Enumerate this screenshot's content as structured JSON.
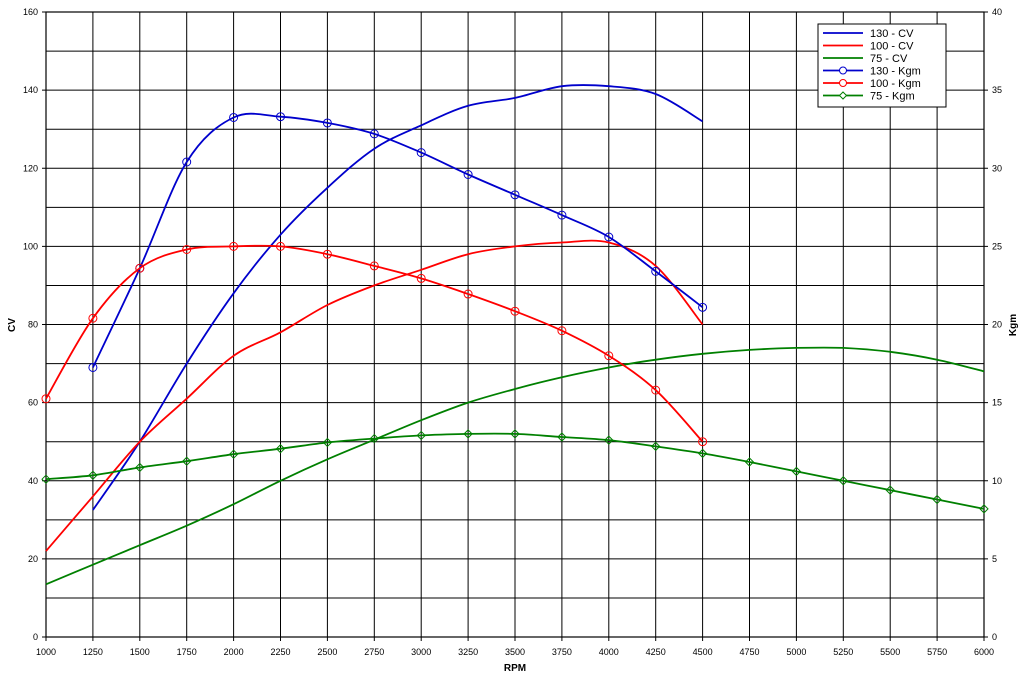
{
  "chart_data": {
    "type": "line",
    "xlabel": "RPM",
    "ylabel_left": "CV",
    "ylabel_right": "Kgm",
    "xlim": [
      1000,
      6000
    ],
    "ylim_left": [
      0,
      160
    ],
    "ylim_right": [
      0,
      40
    ],
    "x_ticks": [
      1000,
      1250,
      1500,
      1750,
      2000,
      2250,
      2500,
      2750,
      3000,
      3250,
      3500,
      3750,
      4000,
      4250,
      4500,
      4750,
      5000,
      5250,
      5500,
      5750,
      6000
    ],
    "y_left_ticks": [
      0,
      20,
      40,
      60,
      80,
      100,
      120,
      140,
      160
    ],
    "y_right_ticks": [
      0,
      5,
      10,
      15,
      20,
      25,
      30,
      35,
      40
    ],
    "grid": true,
    "legend_position": "top-right",
    "series": [
      {
        "name": "130 - CV",
        "axis": "left",
        "color": "#0000cc",
        "marker": "none",
        "x": [
          1250,
          1500,
          1750,
          2000,
          2250,
          2500,
          2750,
          3000,
          3250,
          3500,
          3750,
          4000,
          4250,
          4500
        ],
        "values": [
          32.5,
          50,
          70,
          88,
          103,
          115,
          125,
          131,
          136,
          138,
          141,
          141,
          139,
          132
        ]
      },
      {
        "name": "100 - CV",
        "axis": "left",
        "color": "#ff0000",
        "marker": "none",
        "x": [
          1000,
          1250,
          1500,
          1750,
          2000,
          2250,
          2500,
          2750,
          3000,
          3250,
          3500,
          3750,
          4000,
          4250,
          4500
        ],
        "values": [
          22,
          36,
          50,
          61,
          72,
          78,
          85,
          90,
          94,
          98,
          100,
          101,
          101,
          95,
          80
        ]
      },
      {
        "name": "75 - CV",
        "axis": "left",
        "color": "#008000",
        "marker": "none",
        "x": [
          1000,
          1250,
          1500,
          1750,
          2000,
          2250,
          2500,
          2750,
          3000,
          3250,
          3500,
          3750,
          4000,
          4250,
          4500,
          4750,
          5000,
          5250,
          5500,
          5750,
          6000
        ],
        "values": [
          13.5,
          18.5,
          23.5,
          28.5,
          34,
          40,
          45.5,
          50.5,
          55.5,
          60,
          63.5,
          66.5,
          69,
          71,
          72.5,
          73.5,
          74,
          74,
          73,
          71,
          68
        ]
      },
      {
        "name": "130 - Kgm",
        "axis": "right",
        "color": "#0000cc",
        "marker": "circle",
        "x": [
          1250,
          1500,
          1750,
          2000,
          2250,
          2500,
          2750,
          3000,
          3250,
          3500,
          3750,
          4000,
          4250,
          4500
        ],
        "values": [
          17.25,
          23.6,
          30.4,
          33.25,
          33.3,
          32.9,
          32.2,
          31.0,
          29.6,
          28.3,
          27.0,
          25.6,
          23.4,
          21.1
        ]
      },
      {
        "name": "100 - Kgm",
        "axis": "right",
        "color": "#ff0000",
        "marker": "circle",
        "x": [
          1000,
          1250,
          1500,
          1750,
          2000,
          2250,
          2500,
          2750,
          3000,
          3250,
          3500,
          3750,
          4000,
          4250,
          4500
        ],
        "values": [
          15.25,
          20.4,
          23.6,
          24.8,
          25.0,
          25.0,
          24.5,
          23.75,
          22.95,
          21.95,
          20.85,
          19.6,
          18.0,
          15.8,
          12.5
        ]
      },
      {
        "name": "75 - Kgm",
        "axis": "right",
        "color": "#008000",
        "marker": "diamond",
        "x": [
          1000,
          1250,
          1500,
          1750,
          2000,
          2250,
          2500,
          2750,
          3000,
          3250,
          3500,
          3750,
          4000,
          4250,
          4500,
          4750,
          5000,
          5250,
          5500,
          5750,
          6000
        ],
        "values": [
          10.1,
          10.35,
          10.85,
          11.25,
          11.7,
          12.05,
          12.45,
          12.7,
          12.9,
          13.0,
          13.0,
          12.8,
          12.6,
          12.2,
          11.75,
          11.2,
          10.6,
          10.0,
          9.4,
          8.8,
          8.2
        ]
      }
    ]
  }
}
